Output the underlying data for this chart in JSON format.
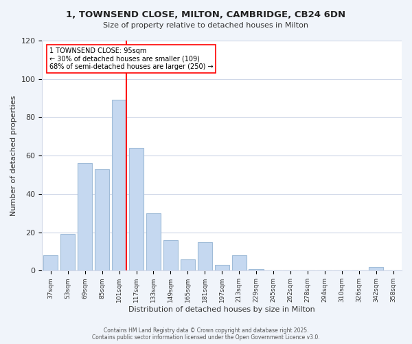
{
  "title": "1, TOWNSEND CLOSE, MILTON, CAMBRIDGE, CB24 6DN",
  "subtitle": "Size of property relative to detached houses in Milton",
  "xlabel": "Distribution of detached houses by size in Milton",
  "ylabel": "Number of detached properties",
  "bin_labels": [
    "37sqm",
    "53sqm",
    "69sqm",
    "85sqm",
    "101sqm",
    "117sqm",
    "133sqm",
    "149sqm",
    "165sqm",
    "181sqm",
    "197sqm",
    "213sqm",
    "229sqm",
    "245sqm",
    "262sqm",
    "278sqm",
    "294sqm",
    "310sqm",
    "326sqm",
    "342sqm",
    "358sqm"
  ],
  "bin_values": [
    8,
    19,
    56,
    53,
    89,
    64,
    30,
    16,
    6,
    15,
    3,
    8,
    1,
    0,
    0,
    0,
    0,
    0,
    0,
    2,
    0
  ],
  "bar_color": "#c5d8f0",
  "bar_edge_color": "#a0bcd8",
  "vline_x_offset": 4.425,
  "vline_color": "red",
  "annotation_line1": "1 TOWNSEND CLOSE: 95sqm",
  "annotation_line2": "← 30% of detached houses are smaller (109)",
  "annotation_line3": "68% of semi-detached houses are larger (250) →",
  "annotation_box_color": "white",
  "annotation_box_edge_color": "red",
  "ylim": [
    0,
    120
  ],
  "yticks": [
    0,
    20,
    40,
    60,
    80,
    100,
    120
  ],
  "footer_text": "Contains HM Land Registry data © Crown copyright and database right 2025.\nContains public sector information licensed under the Open Government Licence v3.0.",
  "bg_color": "#f0f4fa",
  "plot_bg_color": "#ffffff",
  "grid_color": "#d0d8e8"
}
